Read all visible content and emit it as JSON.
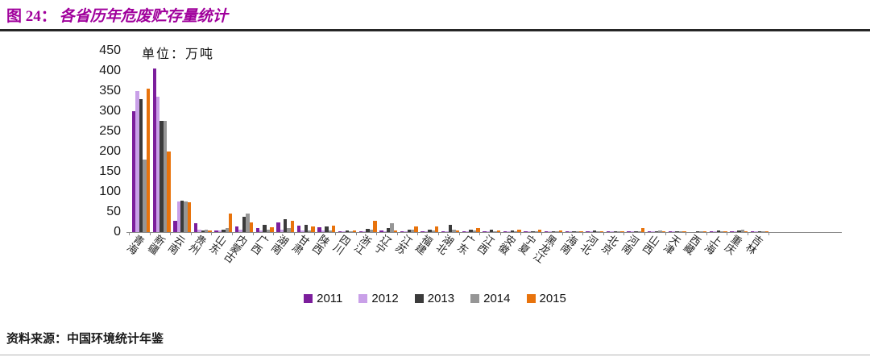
{
  "header": {
    "figure_label": "图 24：",
    "title": "各省历年危废贮存量统计",
    "title_color": "#A0009C"
  },
  "chart_data": {
    "type": "bar",
    "title": "各省历年危废贮存量统计",
    "unit_label": "单位：万吨",
    "xlabel": "",
    "ylabel": "",
    "ylim": [
      0,
      450
    ],
    "yticks": [
      450,
      400,
      350,
      300,
      250,
      200,
      150,
      100,
      50,
      0
    ],
    "grid": false,
    "legend_position": "bottom",
    "categories": [
      "青海",
      "新疆",
      "云南",
      "贵州",
      "山东",
      "内蒙古",
      "广西",
      "湖南",
      "甘肃",
      "陕西",
      "四川",
      "浙江",
      "辽宁",
      "江苏",
      "福建",
      "湖北",
      "广东",
      "江西",
      "安徽",
      "宁夏",
      "黑龙江",
      "海南",
      "河北",
      "北京",
      "河南",
      "山西",
      "天津",
      "西藏",
      "上海",
      "重庆",
      "吉林"
    ],
    "series": [
      {
        "name": "2011",
        "color": "#7C1E9C",
        "values": [
          300,
          405,
          27,
          22,
          3,
          13,
          10,
          24,
          15,
          12,
          2,
          2,
          3,
          2,
          2,
          2,
          2,
          2,
          2,
          1,
          1,
          1,
          1,
          1,
          1,
          1,
          1,
          0,
          1,
          1,
          1
        ]
      },
      {
        "name": "2012",
        "color": "#C9A0E8",
        "values": [
          350,
          335,
          76,
          5,
          4,
          5,
          3,
          6,
          3,
          3,
          2,
          2,
          2,
          2,
          2,
          2,
          2,
          1,
          1,
          1,
          1,
          1,
          1,
          1,
          1,
          1,
          1,
          0,
          1,
          1,
          1
        ]
      },
      {
        "name": "2013",
        "color": "#3B3B3B",
        "values": [
          330,
          275,
          78,
          4,
          6,
          37,
          17,
          32,
          18,
          14,
          3,
          8,
          10,
          5,
          6,
          17,
          5,
          5,
          4,
          2,
          2,
          2,
          3,
          2,
          2,
          2,
          1,
          1,
          3,
          4,
          2
        ]
      },
      {
        "name": "2014",
        "color": "#969696",
        "values": [
          180,
          275,
          76,
          6,
          9,
          46,
          5,
          10,
          4,
          4,
          2,
          5,
          22,
          6,
          4,
          6,
          3,
          2,
          2,
          2,
          2,
          2,
          2,
          2,
          2,
          3,
          1,
          1,
          2,
          5,
          2
        ]
      },
      {
        "name": "2015",
        "color": "#E8730C",
        "values": [
          355,
          200,
          73,
          3,
          45,
          23,
          12,
          27,
          13,
          15,
          3,
          27,
          4,
          13,
          14,
          3,
          10,
          4,
          5,
          6,
          3,
          2,
          2,
          1,
          9,
          1,
          2,
          1,
          1,
          1,
          1
        ]
      }
    ]
  },
  "footer": {
    "source": "资料来源：中国环境统计年鉴"
  }
}
